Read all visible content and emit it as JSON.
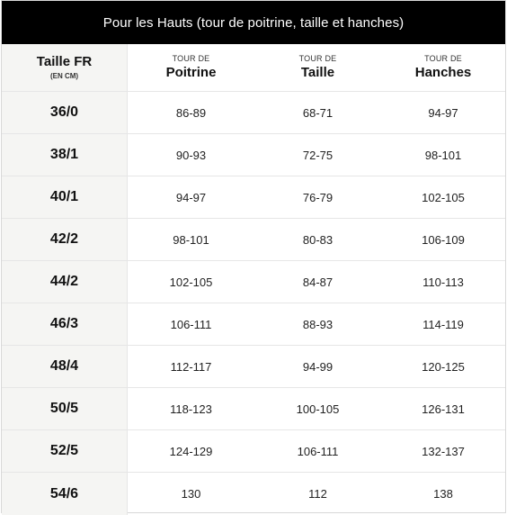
{
  "title": "Pour les Hauts (tour de poitrine, taille et hanches)",
  "header": {
    "size_label": "Taille FR",
    "size_unit": "(EN CM)",
    "columns": [
      {
        "sub": "TOUR DE",
        "main": "Poitrine"
      },
      {
        "sub": "TOUR DE",
        "main": "Taille"
      },
      {
        "sub": "TOUR DE",
        "main": "Hanches"
      }
    ]
  },
  "rows": [
    {
      "size": "36/0",
      "poitrine": "86-89",
      "taille": "68-71",
      "hanches": "94-97"
    },
    {
      "size": "38/1",
      "poitrine": "90-93",
      "taille": "72-75",
      "hanches": "98-101"
    },
    {
      "size": "40/1",
      "poitrine": "94-97",
      "taille": "76-79",
      "hanches": "102-105"
    },
    {
      "size": "42/2",
      "poitrine": "98-101",
      "taille": "80-83",
      "hanches": "106-109"
    },
    {
      "size": "44/2",
      "poitrine": "102-105",
      "taille": "84-87",
      "hanches": "110-113"
    },
    {
      "size": "46/3",
      "poitrine": "106-111",
      "taille": "88-93",
      "hanches": "114-119"
    },
    {
      "size": "48/4",
      "poitrine": "112-117",
      "taille": "94-99",
      "hanches": "120-125"
    },
    {
      "size": "50/5",
      "poitrine": "118-123",
      "taille": "100-105",
      "hanches": "126-131"
    },
    {
      "size": "52/5",
      "poitrine": "124-129",
      "taille": "106-111",
      "hanches": "132-137"
    },
    {
      "size": "54/6",
      "poitrine": "130",
      "taille": "112",
      "hanches": "138"
    }
  ],
  "colors": {
    "title_bg": "#000000",
    "title_text": "#ffffff",
    "size_col_bg": "#f5f5f3",
    "row_border": "#e6e6e6"
  }
}
